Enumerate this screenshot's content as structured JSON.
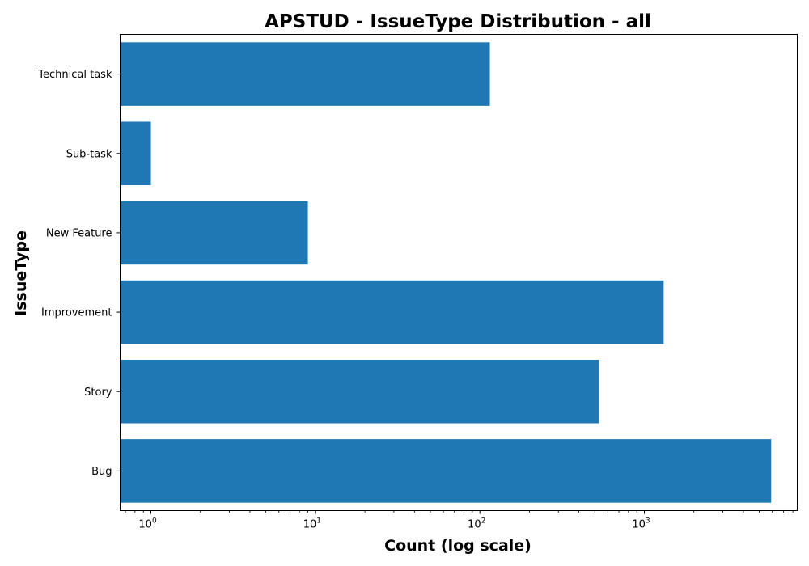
{
  "chart_data": {
    "type": "bar",
    "orientation": "horizontal",
    "title": "APSTUD - IssueType Distribution - all",
    "xlabel": "Count (log scale)",
    "ylabel": "IssueType",
    "x_scale": "log",
    "xlim": [
      0.65,
      8500
    ],
    "x_ticks": [
      {
        "base": "10",
        "exp": "0"
      },
      {
        "base": "10",
        "exp": "1"
      },
      {
        "base": "10",
        "exp": "2"
      },
      {
        "base": "10",
        "exp": "3"
      }
    ],
    "categories": [
      "Bug",
      "Story",
      "Improvement",
      "New Feature",
      "Sub-task",
      "Technical task"
    ],
    "values": [
      5900,
      530,
      1310,
      9,
      1,
      115
    ],
    "grid": false,
    "legend": "none",
    "bar_color": "#1f77b4"
  }
}
